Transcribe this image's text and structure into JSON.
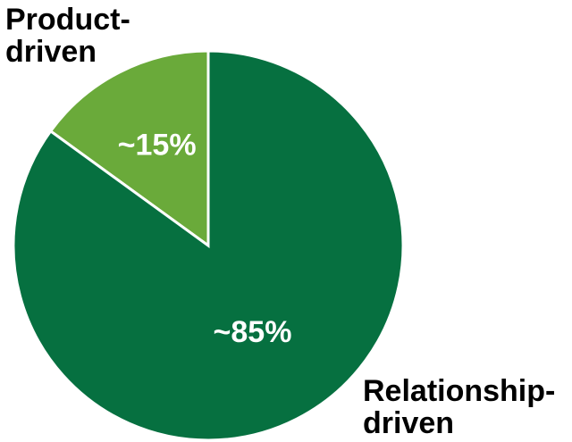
{
  "chart_data": {
    "type": "pie",
    "slices": [
      {
        "label_lines": [
          "Product-",
          "driven"
        ],
        "value": 15,
        "value_label": "~15%",
        "color": "#6aaa3a"
      },
      {
        "label_lines": [
          "Relationship-",
          "driven"
        ],
        "value": 85,
        "value_label": "~85%",
        "color": "#067040"
      }
    ],
    "legend": "none",
    "slice_border_color": "#ffffff"
  }
}
